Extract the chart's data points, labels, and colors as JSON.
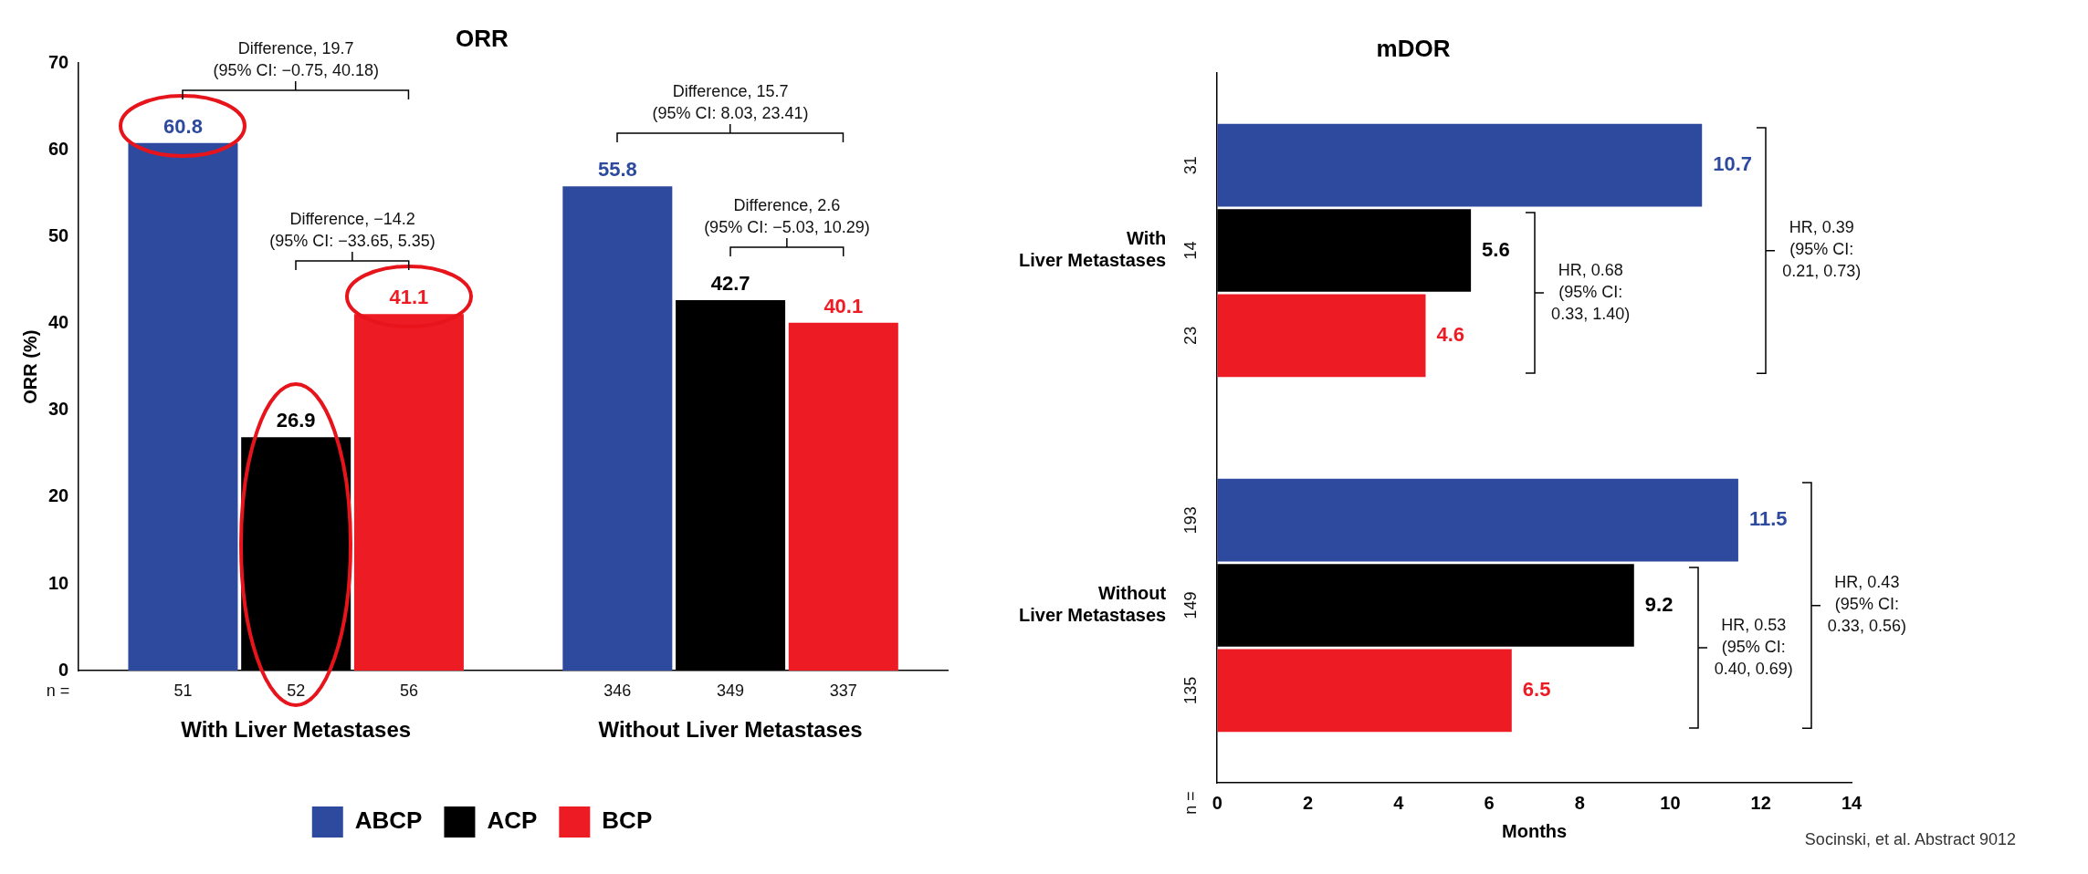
{
  "chart_data": [
    {
      "type": "bar",
      "title": "ORR",
      "ylabel": "ORR (%)",
      "categories": [
        "With Liver Metastases",
        "Without Liver Metastases"
      ],
      "series": [
        {
          "name": "ABCP",
          "color": "#2e4a9e",
          "values": [
            60.8,
            55.8
          ]
        },
        {
          "name": "ACP",
          "color": "#000000",
          "values": [
            26.9,
            42.7
          ]
        },
        {
          "name": "BCP",
          "color": "#ed1c24",
          "values": [
            41.1,
            40.1
          ]
        }
      ],
      "ylim": [
        0,
        70
      ],
      "yticks": [
        0,
        10,
        20,
        30,
        40,
        50,
        60,
        70
      ],
      "grid": false,
      "data_labels": true,
      "legend": "bottom",
      "annotations": [
        "Difference, 19.7\n(95% CI: −0.75, 40.18)",
        "Difference, −14.2\n(95% CI: −33.65, 5.35)",
        "Difference, 15.7\n(95% CI: 8.03, 23.41)",
        "Difference, 2.6\n(95% CI: −5.03, 10.29)",
        "n =",
        "51",
        "52",
        "56",
        "346",
        "349",
        "337"
      ]
    },
    {
      "type": "bar",
      "title": "mDOR",
      "xlabel": "Months",
      "orientation": "horizontal",
      "categories": [
        "With Liver Metastases",
        "Without Liver Metastases"
      ],
      "series": [
        {
          "color": "#2e4a9e",
          "values": [
            10.7,
            11.5
          ]
        },
        {
          "color": "#000000",
          "values": [
            5.6,
            9.2
          ]
        },
        {
          "color": "#ed1c24",
          "values": [
            4.6,
            6.5
          ]
        }
      ],
      "xlim": [
        0,
        14
      ],
      "xticks": [
        0,
        2,
        4,
        6,
        8,
        10,
        12,
        14
      ],
      "grid": false,
      "data_labels": true,
      "annotations": [
        "HR, 0.39\n(95% CI:\n0.21, 0.73)",
        "HR, 0.68\n(95% CI:\n0.33, 1.40)",
        "HR, 0.43\n(95% CI:\n0.33, 0.56)",
        "HR, 0.53\n(95% CI:\n0.40, 0.69)",
        "n =",
        "31",
        "14",
        "23",
        "193",
        "149",
        "135",
        "Socinski, et al. Abstract 9012"
      ]
    }
  ]
}
